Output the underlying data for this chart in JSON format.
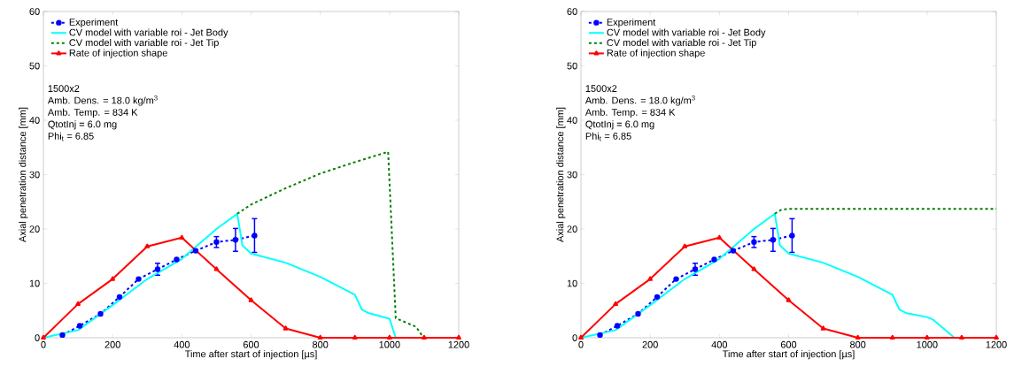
{
  "chart_data": [
    {
      "type": "line",
      "xlabel": "Time after start of injection [µs]",
      "ylabel": "Axial penetration distance [mm]",
      "xlim": [
        0,
        1200
      ],
      "ylim": [
        0,
        60
      ],
      "xticks": [
        0,
        200,
        400,
        600,
        800,
        1000,
        1200
      ],
      "yticks": [
        0,
        10,
        20,
        30,
        40,
        50,
        60
      ],
      "legend": "top left",
      "grid": false,
      "annotations": [
        "1500x2",
        "Amb. Dens. = 18.0 kg/m$^{3}$",
        "Amb. Temp. = 834 K",
        "QtotInj = 6.0 mg",
        "Phi$_{t}$ = 6.85"
      ],
      "series": [
        {
          "name": "Experiment",
          "color": "#0000ff",
          "line_style": "dashed",
          "marker": "circle",
          "x": [
            55,
            105,
            165,
            220,
            275,
            330,
            385,
            440,
            500,
            555,
            610
          ],
          "values": [
            0.5,
            2.2,
            4.4,
            7.5,
            10.8,
            12.6,
            14.4,
            16.0,
            17.6,
            18.0,
            18.8
          ],
          "errors": [
            null,
            null,
            null,
            null,
            null,
            1.1,
            null,
            null,
            1.0,
            2.1,
            3.1
          ]
        },
        {
          "name": "CV model with variable roi - Jet Body",
          "color": "#00ffff",
          "line_style": "solid",
          "marker": "none",
          "x": [
            0,
            100,
            200,
            300,
            400,
            500,
            560,
            575,
            600,
            700,
            800,
            900,
            920,
            941,
            1000,
            1018
          ],
          "values": [
            0,
            1.4,
            6,
            10.8,
            14.5,
            20,
            22.8,
            17,
            15.5,
            13.8,
            11.2,
            7.9,
            5.2,
            4.5,
            3.5,
            0
          ]
        },
        {
          "name": "CV model with variable roi - Jet Tip",
          "color": "#008000",
          "line_style": "dashed",
          "marker": "none",
          "x": [
            560,
            600,
            700,
            800,
            900,
            996,
            1018,
            1077,
            1098
          ],
          "values": [
            22.8,
            24.5,
            27.5,
            30.2,
            32.3,
            34.2,
            3.6,
            2,
            0
          ]
        },
        {
          "name": "Rate of injection shape",
          "color": "#ff0000",
          "line_style": "solid",
          "marker": "triangle",
          "x": [
            0,
            100,
            200,
            300,
            400,
            500,
            600,
            700,
            800,
            900,
            1000,
            1100,
            1200
          ],
          "values": [
            0,
            6.2,
            10.8,
            16.8,
            18.4,
            12.6,
            6.9,
            1.7,
            0,
            0,
            0,
            0,
            0
          ]
        }
      ]
    },
    {
      "type": "line",
      "xlabel": "Time after start of injection [µs]",
      "ylabel": "Axial penetration distance [mm]",
      "xlim": [
        0,
        1200
      ],
      "ylim": [
        0,
        60
      ],
      "xticks": [
        0,
        200,
        400,
        600,
        800,
        1000,
        1200
      ],
      "yticks": [
        0,
        10,
        20,
        30,
        40,
        50,
        60
      ],
      "legend": "top left",
      "grid": false,
      "annotations": [
        "1500x2",
        "Amb. Dens. = 18.0 kg/m$^{3}$",
        "Amb. Temp. = 834 K",
        "QtotInj = 6.0 mg",
        "Phi$_{t}$ = 6.85"
      ],
      "series": [
        {
          "name": "Experiment",
          "color": "#0000ff",
          "line_style": "dashed",
          "marker": "circle",
          "x": [
            55,
            105,
            165,
            220,
            275,
            330,
            385,
            440,
            500,
            555,
            610
          ],
          "values": [
            0.5,
            2.2,
            4.4,
            7.5,
            10.8,
            12.6,
            14.4,
            16.0,
            17.6,
            18.0,
            18.8
          ],
          "errors": [
            null,
            null,
            null,
            null,
            null,
            1.1,
            null,
            null,
            1.0,
            2.1,
            3.1
          ]
        },
        {
          "name": "CV model with variable roi - Jet Body",
          "color": "#00ffff",
          "line_style": "solid",
          "marker": "none",
          "x": [
            0,
            100,
            200,
            300,
            400,
            500,
            560,
            575,
            600,
            700,
            800,
            900,
            920,
            941,
            1000,
            1018,
            1079
          ],
          "values": [
            0,
            1.4,
            6,
            10.8,
            14.5,
            20,
            22.8,
            17,
            15.5,
            13.8,
            11.2,
            7.9,
            5.2,
            4.5,
            3.8,
            3.3,
            0
          ]
        },
        {
          "name": "CV model with variable roi - Jet Tip",
          "color": "#008000",
          "line_style": "dashed",
          "marker": "none",
          "x": [
            560,
            580,
            600,
            1200
          ],
          "values": [
            22.8,
            23.6,
            23.7,
            23.7
          ]
        },
        {
          "name": "Rate of injection shape",
          "color": "#ff0000",
          "line_style": "solid",
          "marker": "triangle",
          "x": [
            0,
            100,
            200,
            300,
            400,
            500,
            600,
            700,
            800,
            900,
            1000,
            1100,
            1200
          ],
          "values": [
            0,
            6.2,
            10.8,
            16.8,
            18.4,
            12.6,
            6.9,
            1.7,
            0,
            0,
            0,
            0,
            0
          ]
        }
      ]
    }
  ]
}
